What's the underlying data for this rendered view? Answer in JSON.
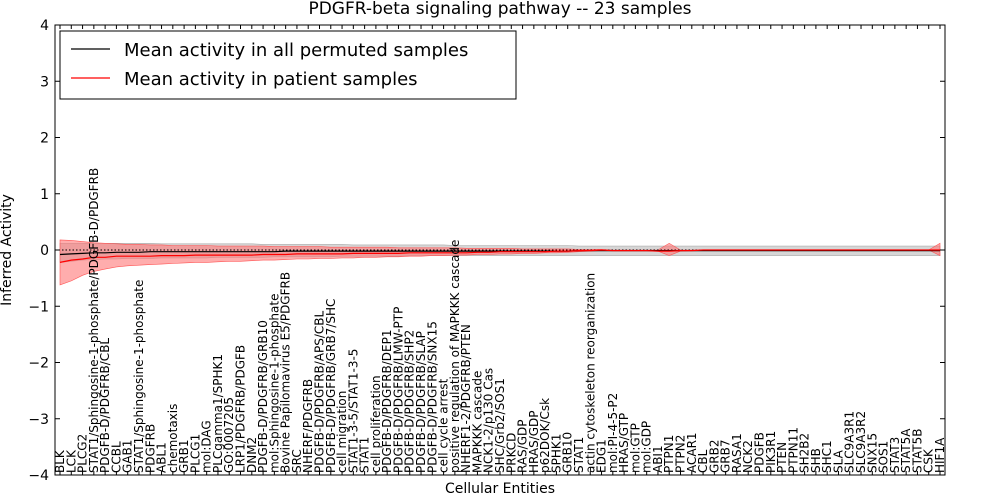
{
  "chart_data": {
    "type": "line",
    "title": "PDGFR-beta signaling pathway -- 23 samples",
    "xlabel": "Cellular Entities",
    "ylabel": "Inferred Activity",
    "ylim": [
      -4,
      4
    ],
    "yticks": [
      "−4",
      "−3",
      "−2",
      "−1",
      "0",
      "1",
      "2",
      "3",
      "4"
    ],
    "legend_position": "top-left",
    "grid": false,
    "colors": {
      "permuted": "#000000",
      "patient": "#ff0000",
      "permuted_band": "#c8c8c8",
      "patient_band": "#ff7777"
    },
    "categories": [
      "BLK",
      "LCK",
      "PLCG2",
      "STAT1/Sphingosine-1-phosphate/PDGFB-D/PDGFRB",
      "PDGFB-D/PDGFRB/CBL",
      "CCBL",
      "GAB1",
      "STAT1/Sphingosine-1-phosphate",
      "PDGFRB",
      "ABL1",
      "chemotaxis",
      "GRB1",
      "PLCG1",
      "mol:DAG",
      "PLCgamma1/SPHK1",
      "GO:0007205",
      "LRP1/PDGFRB/PDGFB",
      "DNM2",
      "PDGFB-D/PDGFRB/GRB10",
      "mol:Sphingosine-1-phosphate",
      "Bovine Papilomavirus E5/PDGFRB",
      "SRC",
      "NHERF/PDGFRB",
      "PDGFB-D/PDGFRB/APS/CBL",
      "PDGFB-D/PDGFRB/GRB7/SHC",
      "cell migration",
      "STAT1-3-5/STAT1-3-5",
      "STAT1",
      "cell proliferation",
      "PDGFB-D/PDGFRB/DEP1",
      "PDGFB-D/PDGFRB/LMW-PTP",
      "PDGFB-D/PDGFRB/SHP2",
      "PDGFB-D/PDGFRB/SLAP",
      "PDGFB-D/PDGFRB/SNX15",
      "cell cycle arrest",
      "positive regulation of MAPKKK cascade",
      "NHERF1-2/PDGFRB/PTEN",
      "MAPKKK cascade",
      "NCK1-2/p130 Cas",
      "SHC/Grb2/SOS1",
      "PRKCD",
      "RAS/GDP",
      "HRAS/GDP",
      "p62DOK/Csk",
      "SPHK1",
      "GRB10",
      "STAT1",
      "actin cytoskeleton reorganization",
      "EDG1",
      "mol:PI-4-5-P2",
      "HRAS/GTP",
      "mol:GTP",
      "mol:GDP",
      "ABI1",
      "PTPN1",
      "PTPN2",
      "ACAR1",
      "CBL",
      "GRB2",
      "GRB7",
      "RASA1",
      "NCK2",
      "PDGFB",
      "PIK3R1",
      "PTEN",
      "PTPN11",
      "SH2B2",
      "SHB",
      "SHC1",
      "SLA",
      "SLC9A3R1",
      "SLC9A3R2",
      "SNX15",
      "SOS1",
      "STAT3",
      "STAT5A",
      "STAT5B",
      "CSK",
      "HIF1A"
    ],
    "series": [
      {
        "name": "Mean activity in all permuted samples",
        "values": [
          -0.08,
          -0.07,
          -0.06,
          -0.05,
          -0.05,
          -0.04,
          -0.04,
          -0.04,
          -0.03,
          -0.03,
          -0.03,
          -0.03,
          -0.03,
          -0.03,
          -0.03,
          -0.03,
          -0.03,
          -0.03,
          -0.03,
          -0.03,
          -0.02,
          -0.02,
          -0.02,
          -0.02,
          -0.02,
          -0.02,
          -0.02,
          -0.02,
          -0.02,
          -0.02,
          -0.02,
          -0.02,
          -0.02,
          -0.02,
          -0.02,
          -0.02,
          -0.02,
          -0.02,
          -0.02,
          -0.02,
          -0.02,
          -0.02,
          -0.02,
          -0.02,
          -0.02,
          -0.02,
          -0.01,
          -0.01,
          -0.01,
          -0.01,
          -0.01,
          -0.01,
          -0.01,
          -0.01,
          -0.01,
          -0.01,
          -0.01,
          -0.01,
          -0.01,
          -0.01,
          -0.01,
          -0.01,
          -0.01,
          -0.01,
          -0.01,
          -0.01,
          -0.01,
          -0.01,
          -0.01,
          -0.01,
          -0.01,
          -0.01,
          -0.01,
          -0.01,
          -0.01,
          -0.01,
          -0.01,
          -0.01,
          -0.01
        ]
      },
      {
        "name": "Mean activity in patient samples",
        "values": [
          -0.22,
          -0.18,
          -0.16,
          -0.13,
          -0.13,
          -0.11,
          -0.11,
          -0.11,
          -0.11,
          -0.1,
          -0.1,
          -0.1,
          -0.09,
          -0.09,
          -0.09,
          -0.09,
          -0.09,
          -0.09,
          -0.08,
          -0.08,
          -0.08,
          -0.07,
          -0.07,
          -0.07,
          -0.07,
          -0.07,
          -0.06,
          -0.06,
          -0.06,
          -0.06,
          -0.06,
          -0.05,
          -0.05,
          -0.05,
          -0.05,
          -0.05,
          -0.05,
          -0.04,
          -0.04,
          -0.03,
          -0.03,
          -0.03,
          -0.03,
          -0.03,
          -0.02,
          -0.02,
          -0.01,
          -0.01,
          0.0,
          -0.01,
          -0.01,
          -0.01,
          -0.01,
          -0.02,
          -0.02,
          -0.01,
          -0.01,
          0.0,
          0.0,
          0.0,
          0.0,
          0.0,
          0.0,
          0.0,
          0.0,
          0.0,
          0.0,
          0.0,
          0.0,
          0.0,
          0.0,
          0.0,
          0.0,
          0.0,
          0.0,
          0.0,
          0.0,
          0.0,
          0.0
        ]
      }
    ],
    "permuted_band": {
      "upper": [
        0.12,
        0.12,
        0.12,
        0.12,
        0.12,
        0.12,
        0.12,
        0.12,
        0.12,
        0.11,
        0.11,
        0.11,
        0.11,
        0.11,
        0.11,
        0.11,
        0.11,
        0.11,
        0.1,
        0.1,
        0.1,
        0.1,
        0.1,
        0.1,
        0.1,
        0.1,
        0.09,
        0.09,
        0.09,
        0.09,
        0.09,
        0.09,
        0.09,
        0.09,
        0.09,
        0.08,
        0.08,
        0.08,
        0.08,
        0.08,
        0.08,
        0.08,
        0.08,
        0.08,
        0.08,
        0.08,
        0.07,
        0.07,
        0.07,
        0.07,
        0.07,
        0.07,
        0.07,
        0.07,
        0.07,
        0.07,
        0.07,
        0.07,
        0.07,
        0.07,
        0.07,
        0.07,
        0.07,
        0.07,
        0.07,
        0.07,
        0.07,
        0.07,
        0.07,
        0.07,
        0.07,
        0.07,
        0.07,
        0.07,
        0.07,
        0.07,
        0.07,
        0.07,
        0.07
      ],
      "lower": [
        -0.22,
        -0.2,
        -0.18,
        -0.17,
        -0.16,
        -0.16,
        -0.15,
        -0.15,
        -0.15,
        -0.14,
        -0.14,
        -0.14,
        -0.14,
        -0.14,
        -0.13,
        -0.13,
        -0.13,
        -0.13,
        -0.13,
        -0.12,
        -0.12,
        -0.12,
        -0.12,
        -0.12,
        -0.12,
        -0.11,
        -0.11,
        -0.11,
        -0.11,
        -0.11,
        -0.11,
        -0.1,
        -0.1,
        -0.1,
        -0.1,
        -0.1,
        -0.1,
        -0.1,
        -0.1,
        -0.1,
        -0.1,
        -0.1,
        -0.1,
        -0.1,
        -0.1,
        -0.1,
        -0.1,
        -0.1,
        -0.1,
        -0.1,
        -0.1,
        -0.1,
        -0.1,
        -0.1,
        -0.1,
        -0.1,
        -0.1,
        -0.1,
        -0.1,
        -0.1,
        -0.1,
        -0.1,
        -0.1,
        -0.1,
        -0.1,
        -0.1,
        -0.1,
        -0.1,
        -0.1,
        -0.1,
        -0.1,
        -0.1,
        -0.1,
        -0.1,
        -0.1,
        -0.1,
        -0.1,
        -0.1,
        -0.1
      ]
    },
    "patient_band": {
      "upper": [
        0.18,
        0.17,
        0.15,
        0.13,
        0.12,
        0.11,
        0.1,
        0.1,
        0.09,
        0.09,
        0.08,
        0.08,
        0.08,
        0.08,
        0.07,
        0.07,
        0.07,
        0.07,
        0.07,
        0.06,
        0.06,
        0.06,
        0.06,
        0.06,
        0.05,
        0.05,
        0.05,
        0.05,
        0.05,
        0.05,
        0.04,
        0.04,
        0.04,
        0.04,
        0.04,
        0.04,
        0.03,
        0.03,
        0.03,
        0.03,
        0.03,
        0.02,
        0.02,
        0.02,
        0.02,
        0.02,
        0.01,
        0.01,
        0.01,
        0.0,
        0.0,
        0.0,
        0.0,
        0.0,
        0.12,
        0.0,
        0.0,
        0.0,
        0.0,
        0.0,
        0.0,
        0.0,
        0.0,
        0.0,
        0.0,
        0.0,
        0.0,
        0.0,
        0.0,
        0.0,
        0.0,
        0.0,
        0.0,
        0.0,
        0.0,
        0.0,
        0.0,
        0.0,
        0.12
      ],
      "lower": [
        -0.62,
        -0.55,
        -0.45,
        -0.38,
        -0.34,
        -0.3,
        -0.28,
        -0.27,
        -0.26,
        -0.25,
        -0.24,
        -0.23,
        -0.22,
        -0.22,
        -0.21,
        -0.2,
        -0.2,
        -0.19,
        -0.18,
        -0.18,
        -0.17,
        -0.16,
        -0.16,
        -0.15,
        -0.15,
        -0.14,
        -0.14,
        -0.13,
        -0.13,
        -0.12,
        -0.12,
        -0.11,
        -0.11,
        -0.1,
        -0.1,
        -0.09,
        -0.09,
        -0.08,
        -0.08,
        -0.07,
        -0.07,
        -0.06,
        -0.06,
        -0.05,
        -0.05,
        -0.04,
        -0.03,
        -0.02,
        -0.01,
        -0.01,
        -0.01,
        -0.01,
        -0.01,
        -0.02,
        -0.1,
        -0.02,
        -0.01,
        0.0,
        0.0,
        0.0,
        0.0,
        0.0,
        0.0,
        0.0,
        0.0,
        0.0,
        0.0,
        0.0,
        0.0,
        0.0,
        0.0,
        0.0,
        0.0,
        0.0,
        0.0,
        0.0,
        0.0,
        0.0,
        -0.1
      ]
    }
  }
}
